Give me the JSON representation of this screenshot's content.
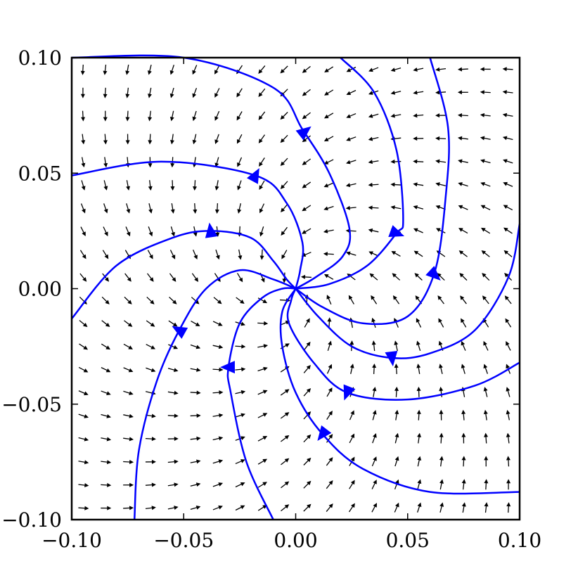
{
  "chart_data": {
    "type": "quiver",
    "title": "",
    "xlabel": "",
    "ylabel": "",
    "xlim": [
      -0.1,
      0.1
    ],
    "ylim": [
      -0.1,
      0.1
    ],
    "grid": false,
    "legend": "none",
    "x_ticks": [
      {
        "value": -0.1,
        "label": "−0.10"
      },
      {
        "value": -0.05,
        "label": "−0.05"
      },
      {
        "value": 0.0,
        "label": "0.00"
      },
      {
        "value": 0.05,
        "label": "0.05"
      },
      {
        "value": 0.1,
        "label": "0.10"
      }
    ],
    "y_ticks": [
      {
        "value": -0.1,
        "label": "−0.10"
      },
      {
        "value": -0.05,
        "label": "−0.05"
      },
      {
        "value": 0.0,
        "label": "0.00"
      },
      {
        "value": 0.05,
        "label": "0.05"
      },
      {
        "value": 0.1,
        "label": "0.10"
      }
    ],
    "vector_field": {
      "u": "-0.9*y - 0.8*x",
      "v": "0.9*x - 0.8*y",
      "grid_x": [
        -0.095,
        -0.085,
        -0.075,
        -0.065,
        -0.055,
        -0.045,
        -0.035,
        -0.025,
        -0.015,
        -0.005,
        0.005,
        0.015,
        0.025,
        0.035,
        0.045,
        0.055,
        0.065,
        0.075,
        0.085,
        0.095
      ],
      "grid_y": [
        -0.095,
        -0.085,
        -0.075,
        -0.065,
        -0.055,
        -0.045,
        -0.035,
        -0.025,
        -0.015,
        -0.005,
        0.005,
        0.015,
        0.025,
        0.035,
        0.045,
        0.055,
        0.065,
        0.075,
        0.085,
        0.095
      ],
      "color": "#000000"
    },
    "streamlines": {
      "color": "#0000ff",
      "center": [
        0.0,
        0.0
      ],
      "curves": [
        {
          "points": [
            [
              -0.1,
              0.1
            ],
            [
              -0.05,
              0.1
            ],
            [
              -0.01,
              0.087
            ],
            [
              0.003,
              0.069
            ],
            [
              0.015,
              0.05
            ],
            [
              0.024,
              0.026
            ],
            [
              0.021,
              0.014
            ],
            [
              0.009,
              0.005
            ],
            [
              0.0,
              0.0
            ]
          ],
          "arrow": [
            0.004,
            0.068
          ]
        },
        {
          "points": [
            [
              0.02,
              0.1
            ],
            [
              0.035,
              0.085
            ],
            [
              0.045,
              0.06
            ],
            [
              0.048,
              0.03
            ],
            [
              0.045,
              0.024
            ],
            [
              0.032,
              0.01
            ],
            [
              0.015,
              0.002
            ],
            [
              0.0,
              0.0
            ]
          ],
          "arrow": [
            0.045,
            0.024
          ]
        },
        {
          "points": [
            [
              0.06,
              0.1
            ],
            [
              0.068,
              0.07
            ],
            [
              0.067,
              0.04
            ],
            [
              0.062,
              0.007
            ],
            [
              0.05,
              -0.012
            ],
            [
              0.03,
              -0.015
            ],
            [
              0.012,
              -0.008
            ],
            [
              0.0,
              0.0
            ]
          ],
          "arrow": [
            0.062,
            0.006
          ]
        },
        {
          "points": [
            [
              0.1,
              0.028
            ],
            [
              0.095,
              0.005
            ],
            [
              0.08,
              -0.018
            ],
            [
              0.06,
              -0.028
            ],
            [
              0.043,
              -0.03
            ],
            [
              0.025,
              -0.025
            ],
            [
              0.01,
              -0.012
            ],
            [
              0.0,
              0.0
            ]
          ],
          "arrow": [
            0.043,
            -0.03
          ]
        },
        {
          "points": [
            [
              0.1,
              -0.032
            ],
            [
              0.08,
              -0.042
            ],
            [
              0.05,
              -0.048
            ],
            [
              0.023,
              -0.045
            ],
            [
              0.008,
              -0.032
            ],
            [
              -0.003,
              -0.015
            ],
            [
              -0.002,
              -0.005
            ],
            [
              0.0,
              0.0
            ]
          ],
          "arrow": [
            0.023,
            -0.045
          ]
        },
        {
          "points": [
            [
              0.1,
              -0.088
            ],
            [
              0.06,
              -0.088
            ],
            [
              0.03,
              -0.078
            ],
            [
              0.012,
              -0.063
            ],
            [
              0.0,
              -0.045
            ],
            [
              -0.006,
              -0.025
            ],
            [
              -0.006,
              -0.01
            ],
            [
              0.0,
              0.0
            ]
          ],
          "arrow": [
            0.012,
            -0.063
          ]
        },
        {
          "points": [
            [
              -0.01,
              -0.1
            ],
            [
              -0.022,
              -0.075
            ],
            [
              -0.029,
              -0.045
            ],
            [
              -0.03,
              -0.034
            ],
            [
              -0.025,
              -0.015
            ],
            [
              -0.015,
              -0.004
            ],
            [
              -0.006,
              0.0
            ],
            [
              0.0,
              0.0
            ]
          ],
          "arrow": [
            -0.03,
            -0.034
          ]
        },
        {
          "points": [
            [
              -0.072,
              -0.1
            ],
            [
              -0.07,
              -0.07
            ],
            [
              -0.062,
              -0.04
            ],
            [
              -0.052,
              -0.018
            ],
            [
              -0.04,
              0.0
            ],
            [
              -0.025,
              0.008
            ],
            [
              -0.01,
              0.004
            ],
            [
              0.0,
              0.0
            ]
          ],
          "arrow": [
            -0.052,
            -0.018
          ]
        },
        {
          "points": [
            [
              -0.1,
              -0.013
            ],
            [
              -0.08,
              0.01
            ],
            [
              -0.055,
              0.022
            ],
            [
              -0.038,
              0.025
            ],
            [
              -0.02,
              0.022
            ],
            [
              -0.01,
              0.012
            ],
            [
              -0.004,
              0.004
            ],
            [
              0.0,
              0.0
            ]
          ],
          "arrow": [
            -0.038,
            0.025
          ]
        },
        {
          "points": [
            [
              -0.1,
              0.049
            ],
            [
              -0.06,
              0.055
            ],
            [
              -0.018,
              0.049
            ],
            [
              -0.004,
              0.037
            ],
            [
              0.003,
              0.02
            ],
            [
              0.002,
              0.008
            ],
            [
              0.0,
              0.0
            ]
          ],
          "arrow": [
            -0.018,
            0.049
          ]
        }
      ]
    }
  }
}
